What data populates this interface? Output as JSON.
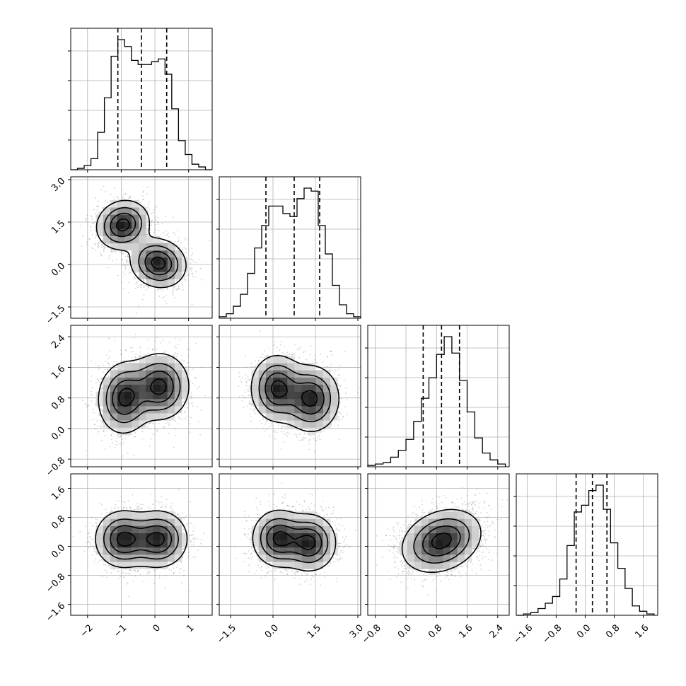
{
  "figure": {
    "type": "corner-plot"
  },
  "colors": {
    "ink": "#000000",
    "grid": "#b0b0b0",
    "background": "#ffffff"
  },
  "axes": {
    "p0": {
      "ticks": [
        -2,
        -1,
        0,
        1
      ],
      "labels": [
        "−2",
        "−1",
        "0",
        "1"
      ],
      "range": [
        -2.5,
        1.7
      ]
    },
    "p1": {
      "ticks": [
        -1.5,
        0.0,
        1.5,
        3.0
      ],
      "labels": [
        "−1.5",
        "0.0",
        "1.5",
        "3.0"
      ],
      "range": [
        -1.9,
        3.1
      ]
    },
    "p2": {
      "ticks": [
        -0.8,
        0.0,
        0.8,
        1.6,
        2.4
      ],
      "labels": [
        "−0.8",
        "0.0",
        "0.8",
        "1.6",
        "2.4"
      ],
      "range": [
        -1.0,
        2.7
      ]
    },
    "p3": {
      "ticks": [
        -1.6,
        -0.8,
        0.0,
        0.8,
        1.6
      ],
      "labels": [
        "−1.6",
        "−0.8",
        "0.0",
        "0.8",
        "1.6"
      ],
      "range": [
        -1.9,
        2.0
      ]
    }
  },
  "chart_data": [
    {
      "type": "histogram",
      "panel": "p0 marginal",
      "param": "p0",
      "bin_edges": [
        -2.5,
        -2.3,
        -2.1,
        -1.9,
        -1.7,
        -1.5,
        -1.3,
        -1.1,
        -0.9,
        -0.7,
        -0.5,
        -0.3,
        -0.1,
        0.1,
        0.3,
        0.5,
        0.7,
        0.9,
        1.1,
        1.3,
        1.5,
        1.7
      ],
      "counts": [
        0.0,
        0.01,
        0.03,
        0.08,
        0.27,
        0.52,
        0.82,
        0.94,
        0.89,
        0.79,
        0.76,
        0.76,
        0.78,
        0.8,
        0.69,
        0.44,
        0.21,
        0.11,
        0.04,
        0.02,
        0.0
      ],
      "quantiles": [
        -1.1,
        -0.4,
        0.35
      ]
    },
    {
      "type": "histogram",
      "panel": "p1 marginal",
      "param": "p1",
      "bin_edges": [
        -1.9,
        -1.65,
        -1.4,
        -1.15,
        -0.9,
        -0.65,
        -0.4,
        -0.15,
        0.1,
        0.35,
        0.6,
        0.85,
        1.1,
        1.35,
        1.6,
        1.85,
        2.1,
        2.35,
        2.6,
        2.85,
        3.1
      ],
      "counts": [
        0.01,
        0.03,
        0.08,
        0.16,
        0.3,
        0.47,
        0.62,
        0.75,
        0.75,
        0.7,
        0.68,
        0.8,
        0.87,
        0.85,
        0.62,
        0.43,
        0.22,
        0.09,
        0.03,
        0.01
      ],
      "quantiles": [
        -0.25,
        0.75,
        1.65
      ]
    },
    {
      "type": "histogram",
      "panel": "p2 marginal",
      "param": "p2",
      "bin_edges": [
        -1.0,
        -0.8,
        -0.6,
        -0.4,
        -0.2,
        0.0,
        0.2,
        0.4,
        0.6,
        0.8,
        1.0,
        1.2,
        1.4,
        1.6,
        1.8,
        2.0,
        2.2,
        2.4,
        2.6
      ],
      "counts": [
        0.01,
        0.02,
        0.03,
        0.07,
        0.12,
        0.2,
        0.33,
        0.5,
        0.65,
        0.82,
        0.95,
        0.83,
        0.63,
        0.4,
        0.21,
        0.1,
        0.05,
        0.02
      ],
      "quantiles": [
        0.45,
        0.93,
        1.4
      ]
    },
    {
      "type": "histogram",
      "panel": "p3 marginal",
      "param": "p3",
      "bin_edges": [
        -1.9,
        -1.7,
        -1.5,
        -1.3,
        -1.1,
        -0.9,
        -0.7,
        -0.5,
        -0.3,
        -0.1,
        0.1,
        0.3,
        0.5,
        0.7,
        0.9,
        1.1,
        1.3,
        1.5,
        1.7,
        1.9
      ],
      "counts": [
        0.0,
        0.01,
        0.02,
        0.05,
        0.09,
        0.14,
        0.27,
        0.52,
        0.77,
        0.82,
        0.93,
        0.97,
        0.79,
        0.54,
        0.35,
        0.2,
        0.07,
        0.03,
        0.01
      ],
      "quantiles": [
        -0.25,
        0.2,
        0.6
      ]
    },
    {
      "type": "density-contour",
      "panel": "p1 vs p0",
      "x": "p0",
      "y": "p1",
      "components": [
        {
          "cx": -0.95,
          "cy": 1.4,
          "sx": 0.38,
          "sy": 0.42,
          "rho": 0.1,
          "w": 1.0
        },
        {
          "cx": 0.1,
          "cy": 0.05,
          "sx": 0.4,
          "sy": 0.42,
          "rho": -0.1,
          "w": 1.0
        }
      ]
    },
    {
      "type": "density-contour",
      "panel": "p2 vs p0",
      "x": "p0",
      "y": "p2",
      "components": [
        {
          "cx": -0.9,
          "cy": 0.8,
          "sx": 0.38,
          "sy": 0.45,
          "rho": 0.05,
          "w": 1.0
        },
        {
          "cx": 0.15,
          "cy": 1.1,
          "sx": 0.42,
          "sy": 0.42,
          "rho": 0.0,
          "w": 1.0
        }
      ]
    },
    {
      "type": "density-contour",
      "panel": "p2 vs p1",
      "x": "p1",
      "y": "p2",
      "components": [
        {
          "cx": 0.15,
          "cy": 1.05,
          "sx": 0.45,
          "sy": 0.42,
          "rho": 0.0,
          "w": 1.0
        },
        {
          "cx": 1.35,
          "cy": 0.78,
          "sx": 0.48,
          "sy": 0.42,
          "rho": 0.0,
          "w": 1.0
        }
      ]
    },
    {
      "type": "density-contour",
      "panel": "p3 vs p0",
      "x": "p0",
      "y": "p3",
      "components": [
        {
          "cx": -0.95,
          "cy": 0.2,
          "sx": 0.4,
          "sy": 0.38,
          "rho": 0.0,
          "w": 1.0
        },
        {
          "cx": 0.1,
          "cy": 0.2,
          "sx": 0.42,
          "sy": 0.38,
          "rho": 0.0,
          "w": 1.0
        }
      ]
    },
    {
      "type": "density-contour",
      "panel": "p3 vs p1",
      "x": "p1",
      "y": "p3",
      "components": [
        {
          "cx": 0.2,
          "cy": 0.22,
          "sx": 0.45,
          "sy": 0.38,
          "rho": 0.0,
          "w": 1.0
        },
        {
          "cx": 1.3,
          "cy": 0.1,
          "sx": 0.45,
          "sy": 0.38,
          "rho": 0.0,
          "w": 1.0
        }
      ]
    },
    {
      "type": "density-contour",
      "panel": "p3 vs p2",
      "x": "p2",
      "y": "p3",
      "components": [
        {
          "cx": 0.93,
          "cy": 0.15,
          "sx": 0.5,
          "sy": 0.42,
          "rho": 0.25,
          "w": 1.0
        }
      ]
    }
  ]
}
